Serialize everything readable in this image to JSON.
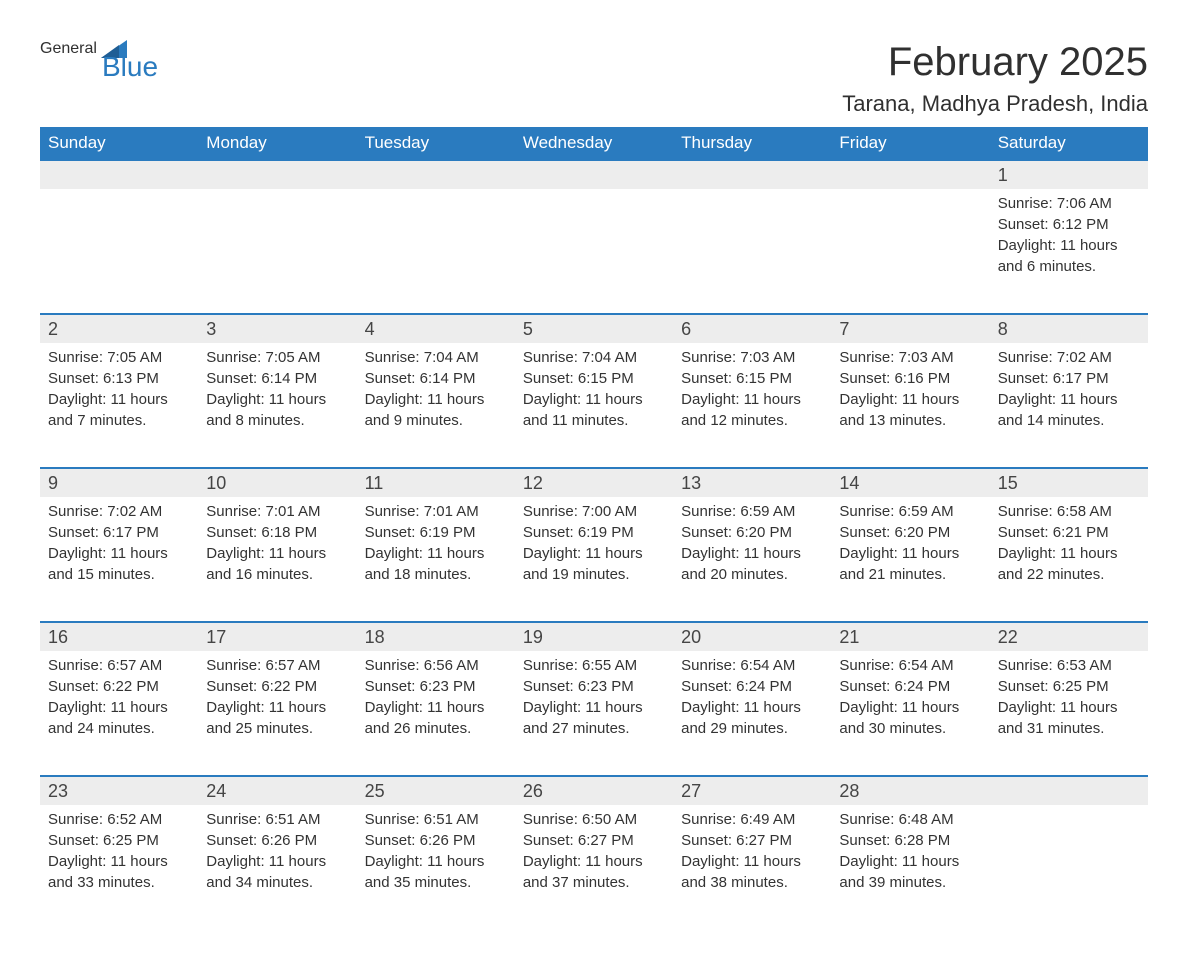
{
  "brand": {
    "word1": "General",
    "word2": "Blue"
  },
  "title": "February 2025",
  "location": "Tarana, Madhya Pradesh, India",
  "colors": {
    "header_bg": "#2a7bbf",
    "header_fg": "#ffffff",
    "daynum_bg": "#ededed",
    "text": "#303030",
    "row_border": "#2a7bbf",
    "logo_blue": "#2a7bbf",
    "page_bg": "#ffffff"
  },
  "day_names": [
    "Sunday",
    "Monday",
    "Tuesday",
    "Wednesday",
    "Thursday",
    "Friday",
    "Saturday"
  ],
  "label_sunrise": "Sunrise: ",
  "label_sunset": "Sunset: ",
  "label_daylight_prefix": "Daylight: ",
  "weeks": [
    [
      null,
      null,
      null,
      null,
      null,
      null,
      {
        "d": "1",
        "sr": "7:06 AM",
        "ss": "6:12 PM",
        "dl": "11 hours and 6 minutes."
      }
    ],
    [
      {
        "d": "2",
        "sr": "7:05 AM",
        "ss": "6:13 PM",
        "dl": "11 hours and 7 minutes."
      },
      {
        "d": "3",
        "sr": "7:05 AM",
        "ss": "6:14 PM",
        "dl": "11 hours and 8 minutes."
      },
      {
        "d": "4",
        "sr": "7:04 AM",
        "ss": "6:14 PM",
        "dl": "11 hours and 9 minutes."
      },
      {
        "d": "5",
        "sr": "7:04 AM",
        "ss": "6:15 PM",
        "dl": "11 hours and 11 minutes."
      },
      {
        "d": "6",
        "sr": "7:03 AM",
        "ss": "6:15 PM",
        "dl": "11 hours and 12 minutes."
      },
      {
        "d": "7",
        "sr": "7:03 AM",
        "ss": "6:16 PM",
        "dl": "11 hours and 13 minutes."
      },
      {
        "d": "8",
        "sr": "7:02 AM",
        "ss": "6:17 PM",
        "dl": "11 hours and 14 minutes."
      }
    ],
    [
      {
        "d": "9",
        "sr": "7:02 AM",
        "ss": "6:17 PM",
        "dl": "11 hours and 15 minutes."
      },
      {
        "d": "10",
        "sr": "7:01 AM",
        "ss": "6:18 PM",
        "dl": "11 hours and 16 minutes."
      },
      {
        "d": "11",
        "sr": "7:01 AM",
        "ss": "6:19 PM",
        "dl": "11 hours and 18 minutes."
      },
      {
        "d": "12",
        "sr": "7:00 AM",
        "ss": "6:19 PM",
        "dl": "11 hours and 19 minutes."
      },
      {
        "d": "13",
        "sr": "6:59 AM",
        "ss": "6:20 PM",
        "dl": "11 hours and 20 minutes."
      },
      {
        "d": "14",
        "sr": "6:59 AM",
        "ss": "6:20 PM",
        "dl": "11 hours and 21 minutes."
      },
      {
        "d": "15",
        "sr": "6:58 AM",
        "ss": "6:21 PM",
        "dl": "11 hours and 22 minutes."
      }
    ],
    [
      {
        "d": "16",
        "sr": "6:57 AM",
        "ss": "6:22 PM",
        "dl": "11 hours and 24 minutes."
      },
      {
        "d": "17",
        "sr": "6:57 AM",
        "ss": "6:22 PM",
        "dl": "11 hours and 25 minutes."
      },
      {
        "d": "18",
        "sr": "6:56 AM",
        "ss": "6:23 PM",
        "dl": "11 hours and 26 minutes."
      },
      {
        "d": "19",
        "sr": "6:55 AM",
        "ss": "6:23 PM",
        "dl": "11 hours and 27 minutes."
      },
      {
        "d": "20",
        "sr": "6:54 AM",
        "ss": "6:24 PM",
        "dl": "11 hours and 29 minutes."
      },
      {
        "d": "21",
        "sr": "6:54 AM",
        "ss": "6:24 PM",
        "dl": "11 hours and 30 minutes."
      },
      {
        "d": "22",
        "sr": "6:53 AM",
        "ss": "6:25 PM",
        "dl": "11 hours and 31 minutes."
      }
    ],
    [
      {
        "d": "23",
        "sr": "6:52 AM",
        "ss": "6:25 PM",
        "dl": "11 hours and 33 minutes."
      },
      {
        "d": "24",
        "sr": "6:51 AM",
        "ss": "6:26 PM",
        "dl": "11 hours and 34 minutes."
      },
      {
        "d": "25",
        "sr": "6:51 AM",
        "ss": "6:26 PM",
        "dl": "11 hours and 35 minutes."
      },
      {
        "d": "26",
        "sr": "6:50 AM",
        "ss": "6:27 PM",
        "dl": "11 hours and 37 minutes."
      },
      {
        "d": "27",
        "sr": "6:49 AM",
        "ss": "6:27 PM",
        "dl": "11 hours and 38 minutes."
      },
      {
        "d": "28",
        "sr": "6:48 AM",
        "ss": "6:28 PM",
        "dl": "11 hours and 39 minutes."
      },
      null
    ]
  ]
}
